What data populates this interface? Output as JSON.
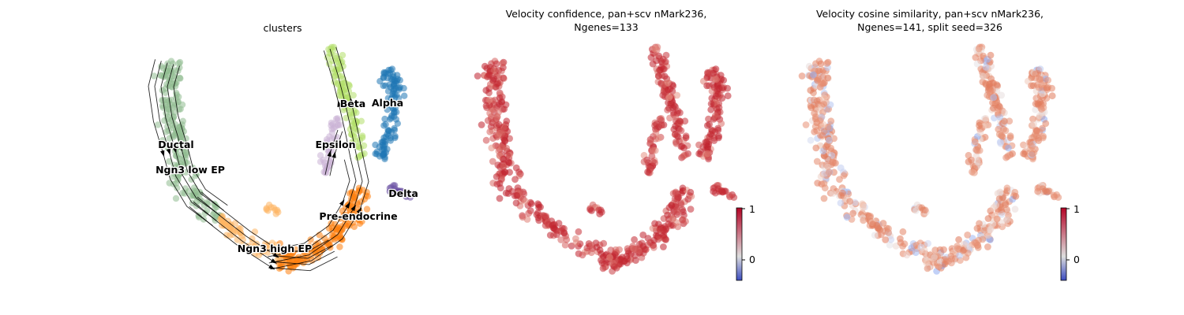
{
  "chart_data": [
    {
      "type": "scatter",
      "title": "clusters",
      "subtitle": "",
      "xlabel": "",
      "ylabel": "",
      "grid": false,
      "axes_visible": false,
      "overlay": "velocity stream arrows",
      "clusters": [
        {
          "label": "Ductal",
          "color": "#8fbc8f"
        },
        {
          "label": "Ngn3 low EP",
          "color": "#8fbc8f"
        },
        {
          "label": "Ngn3 high EP",
          "color": "#fdb462"
        },
        {
          "label": "Pre-endocrine",
          "color": "#ff7f0e"
        },
        {
          "label": "Beta",
          "color": "#b3de69"
        },
        {
          "label": "Alpha",
          "color": "#1f77b4"
        },
        {
          "label": "Epsilon",
          "color": "#cab2d6"
        },
        {
          "label": "Delta",
          "color": "#6a51a3"
        }
      ]
    },
    {
      "type": "scatter",
      "title": "Velocity confidence, pan+scv nMark236,",
      "subtitle": "Ngenes=133",
      "colormap": "coolwarm",
      "colorbar": {
        "ticks": [
          "1",
          "0"
        ],
        "min": -0.5,
        "max": 1
      },
      "grid": false,
      "axes_visible": false
    },
    {
      "type": "scatter",
      "title": "Velocity cosine similarity, pan+scv nMark236,",
      "subtitle": "Ngenes=141, split seed=326",
      "colormap": "coolwarm",
      "colorbar": {
        "ticks": [
          "1",
          "0"
        ],
        "min": -0.5,
        "max": 1
      },
      "grid": false,
      "axes_visible": false
    }
  ],
  "colors": {
    "ductal": "#8fbc8f",
    "ngn3_high": "#fdb462",
    "pre_endocrine": "#ff7f0e",
    "beta": "#b3de69",
    "alpha": "#1f77b4",
    "epsilon": "#cab2d6",
    "delta": "#6a51a3",
    "confidence_high": "#c0202c",
    "cosine_mid": "#e8957a",
    "cosine_low": "#8aa8f0"
  }
}
